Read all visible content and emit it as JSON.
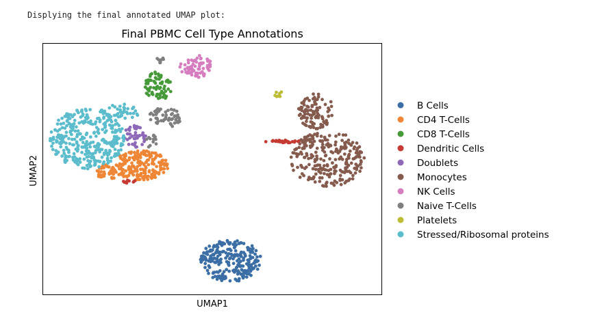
{
  "console": {
    "text": "Displying the final annotated UMAP plot:"
  },
  "chart_data": {
    "type": "scatter",
    "title": "Final PBMC Cell Type Annotations",
    "xlabel": "UMAP1",
    "ylabel": "UMAP2",
    "xlim": [
      0,
      10
    ],
    "ylim": [
      0,
      10
    ],
    "grid": false,
    "ticks": false,
    "legend_position": "right",
    "series": [
      {
        "name": "B Cells",
        "color": "#3a6ea5",
        "clusters": [
          {
            "cx": 5.55,
            "cy": 1.35,
            "rx": 0.9,
            "ry": 0.85,
            "n": 240
          }
        ]
      },
      {
        "name": "CD4 T-Cells",
        "color": "#ef8636",
        "clusters": [
          {
            "cx": 2.9,
            "cy": 5.15,
            "rx": 0.8,
            "ry": 0.6,
            "n": 190
          },
          {
            "cx": 1.95,
            "cy": 4.9,
            "rx": 0.45,
            "ry": 0.28,
            "n": 50
          }
        ]
      },
      {
        "name": "CD8 T-Cells",
        "color": "#479a3a",
        "clusters": [
          {
            "cx": 3.4,
            "cy": 8.3,
            "rx": 0.4,
            "ry": 0.6,
            "n": 75
          }
        ]
      },
      {
        "name": "Dendritic Cells",
        "color": "#c53a32",
        "clusters": [
          {
            "cx": 7.1,
            "cy": 6.1,
            "rx": 0.55,
            "ry": 0.05,
            "n": 28
          },
          {
            "cx": 2.55,
            "cy": 4.5,
            "rx": 0.25,
            "ry": 0.06,
            "n": 10
          }
        ]
      },
      {
        "name": "Doublets",
        "color": "#8d69b8",
        "clusters": [
          {
            "cx": 2.7,
            "cy": 6.3,
            "rx": 0.35,
            "ry": 0.45,
            "n": 45
          }
        ]
      },
      {
        "name": "Monocytes",
        "color": "#845b4d",
        "clusters": [
          {
            "cx": 8.4,
            "cy": 5.4,
            "rx": 1.1,
            "ry": 1.1,
            "n": 260
          },
          {
            "cx": 8.05,
            "cy": 7.3,
            "rx": 0.55,
            "ry": 0.7,
            "n": 100
          }
        ]
      },
      {
        "name": "NK Cells",
        "color": "#d57dbf",
        "clusters": [
          {
            "cx": 4.5,
            "cy": 9.1,
            "rx": 0.5,
            "ry": 0.45,
            "n": 70
          }
        ]
      },
      {
        "name": "Naive T-Cells",
        "color": "#7f7f7f",
        "clusters": [
          {
            "cx": 3.6,
            "cy": 7.05,
            "rx": 0.5,
            "ry": 0.4,
            "n": 55
          },
          {
            "cx": 3.45,
            "cy": 9.35,
            "rx": 0.12,
            "ry": 0.12,
            "n": 8
          },
          {
            "cx": 3.2,
            "cy": 6.1,
            "rx": 0.15,
            "ry": 0.35,
            "n": 12
          }
        ]
      },
      {
        "name": "Platelets",
        "color": "#bcbc35",
        "clusters": [
          {
            "cx": 6.95,
            "cy": 8.0,
            "rx": 0.15,
            "ry": 0.12,
            "n": 7
          }
        ]
      },
      {
        "name": "Stressed/Ribosomal proteins",
        "color": "#5bbccc",
        "clusters": [
          {
            "cx": 1.3,
            "cy": 6.2,
            "rx": 1.1,
            "ry": 1.2,
            "n": 340
          },
          {
            "cx": 2.3,
            "cy": 7.3,
            "rx": 0.6,
            "ry": 0.3,
            "n": 40
          }
        ]
      }
    ]
  }
}
